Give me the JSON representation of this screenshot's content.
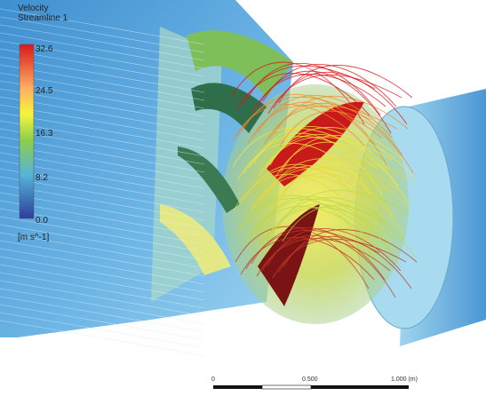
{
  "legend": {
    "title": "Velocity",
    "subtitle": "Streamline 1",
    "labels": [
      "32.6",
      "24.5",
      "16.3",
      "8.2",
      "0.0"
    ],
    "unit": "[m s^-1]"
  },
  "scale_bar": {
    "labels": [
      "0",
      "0.500",
      "1.000 (m)"
    ]
  }
}
